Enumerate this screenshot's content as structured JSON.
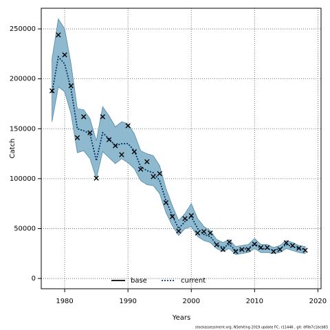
{
  "chart_data": {
    "type": "line",
    "xlabel": "Years",
    "ylabel": "Catch",
    "footer": "stockassessment.org, NSehiting 2019 update FC, r11446 , git: df0b7c1bcb83",
    "x": [
      1978,
      1979,
      1980,
      1981,
      1982,
      1983,
      1984,
      1985,
      1986,
      1987,
      1988,
      1989,
      1990,
      1991,
      1992,
      1993,
      1994,
      1995,
      1996,
      1997,
      1998,
      1999,
      2000,
      2001,
      2002,
      2003,
      2004,
      2005,
      2006,
      2007,
      2008,
      2009,
      2010,
      2011,
      2012,
      2013,
      2014,
      2015,
      2016,
      2017,
      2018
    ],
    "series": [
      {
        "name": "base",
        "color": "#000000",
        "values": [
          null,
          null,
          null,
          null,
          null,
          null,
          null,
          null,
          null,
          null,
          null,
          null,
          null,
          null,
          null,
          null,
          null,
          null,
          null,
          null,
          null,
          null,
          null,
          null,
          null,
          null,
          null,
          null,
          null,
          null,
          null,
          null,
          null,
          null,
          null,
          null,
          null,
          null,
          null,
          null,
          null
        ]
      },
      {
        "name": "current",
        "color": "#00305f",
        "values": [
          186000,
          222000,
          215000,
          190000,
          150000,
          148000,
          145000,
          118000,
          146000,
          140000,
          133000,
          135000,
          135000,
          128000,
          112000,
          108000,
          106000,
          98000,
          78000,
          63000,
          50000,
          57000,
          62000,
          50000,
          44000,
          42000,
          34000,
          31000,
          34000,
          28000,
          29000,
          30000,
          35000,
          30000,
          30000,
          28000,
          30000,
          34000,
          32000,
          30000,
          29000
        ]
      }
    ],
    "band": {
      "color": "#8fb9cf",
      "edge": "#4f8aa8",
      "upper": [
        220000,
        260000,
        250000,
        215000,
        170000,
        169000,
        160000,
        138000,
        172000,
        163000,
        152000,
        157000,
        155000,
        145000,
        128000,
        125000,
        123000,
        113000,
        90000,
        73000,
        58000,
        65000,
        75000,
        60000,
        52000,
        48000,
        39000,
        36000,
        39000,
        32000,
        33000,
        34000,
        40000,
        34000,
        34000,
        31000,
        33000,
        38000,
        36000,
        33000,
        32000
      ],
      "lower": [
        157000,
        192000,
        187000,
        165000,
        126000,
        128000,
        120000,
        100000,
        127000,
        121000,
        115000,
        120000,
        116000,
        110000,
        98000,
        94000,
        93000,
        85000,
        66000,
        53000,
        43000,
        50000,
        52000,
        42000,
        38000,
        36000,
        30000,
        27000,
        30000,
        24000,
        25000,
        26000,
        30000,
        26000,
        26000,
        25000,
        26000,
        30000,
        28000,
        26000,
        25000
      ]
    },
    "observed": {
      "color": "#000000",
      "values": [
        188000,
        244000,
        224000,
        193000,
        141000,
        162000,
        146000,
        100500,
        162000,
        139000,
        133000,
        124000,
        153000,
        127000,
        109500,
        117000,
        102000,
        105000,
        76000,
        62000,
        47500,
        60000,
        63000,
        45500,
        47000,
        45500,
        33700,
        29000,
        36500,
        27000,
        29000,
        29000,
        34400,
        31000,
        31000,
        27000,
        29000,
        35800,
        33000,
        30300,
        28200
      ]
    },
    "xlim": [
      1976.3,
      2020.5
    ],
    "ylim": [
      -10300,
      270700
    ],
    "xticks": [
      1980,
      1990,
      2000,
      2010,
      2020
    ],
    "yticks": [
      0,
      50000,
      100000,
      150000,
      200000,
      250000
    ],
    "grid": true,
    "legend": "bottom"
  }
}
